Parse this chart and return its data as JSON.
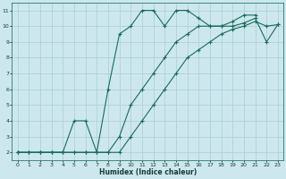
{
  "xlabel": "Humidex (Indice chaleur)",
  "ylabel": "",
  "bg_color": "#cce8ee",
  "grid_color": "#b0d0d8",
  "line_color": "#1a6b5a",
  "xlim": [
    -0.5,
    23.5
  ],
  "ylim": [
    1.5,
    11.5
  ],
  "xticks": [
    0,
    1,
    2,
    3,
    4,
    5,
    6,
    7,
    8,
    9,
    10,
    11,
    12,
    13,
    14,
    15,
    16,
    17,
    18,
    19,
    20,
    21,
    22,
    23
  ],
  "yticks": [
    2,
    3,
    4,
    5,
    6,
    7,
    8,
    9,
    10,
    11
  ],
  "series": [
    {
      "x": [
        0,
        1,
        2,
        3,
        4,
        5,
        6,
        7,
        8,
        9,
        10,
        11,
        12,
        13,
        14,
        15,
        16,
        17,
        18,
        19,
        20,
        21,
        22,
        23
      ],
      "y": [
        2,
        2,
        2,
        2,
        2,
        2,
        2,
        2,
        2,
        2,
        3,
        4,
        5,
        6,
        7,
        8,
        8.5,
        9,
        9.5,
        9.8,
        10,
        10.3,
        10,
        10.1
      ],
      "marker": "+",
      "ms": 3,
      "lw": 0.8
    },
    {
      "x": [
        0,
        1,
        2,
        3,
        4,
        5,
        6,
        7,
        8,
        9,
        10,
        11,
        12,
        13,
        14,
        15,
        16,
        17,
        18,
        19,
        20,
        21,
        22,
        23
      ],
      "y": [
        2,
        2,
        2,
        2,
        2,
        2,
        2,
        2,
        2,
        3,
        5,
        6,
        7,
        8,
        9,
        9.5,
        10,
        10,
        10,
        10,
        10.2,
        10.5,
        9,
        10.1
      ],
      "marker": "+",
      "ms": 3,
      "lw": 0.8
    },
    {
      "x": [
        0,
        1,
        2,
        3,
        4,
        5,
        6,
        7,
        8,
        9,
        10,
        11,
        12,
        13,
        14,
        15,
        16,
        17,
        18,
        19,
        20,
        21
      ],
      "y": [
        2,
        2,
        2,
        2,
        2,
        4,
        4,
        2,
        6,
        9.5,
        10,
        11,
        11,
        10,
        11,
        11,
        10.5,
        10,
        10,
        10.3,
        10.7,
        10.7
      ],
      "marker": "+",
      "ms": 3,
      "lw": 0.8
    }
  ]
}
